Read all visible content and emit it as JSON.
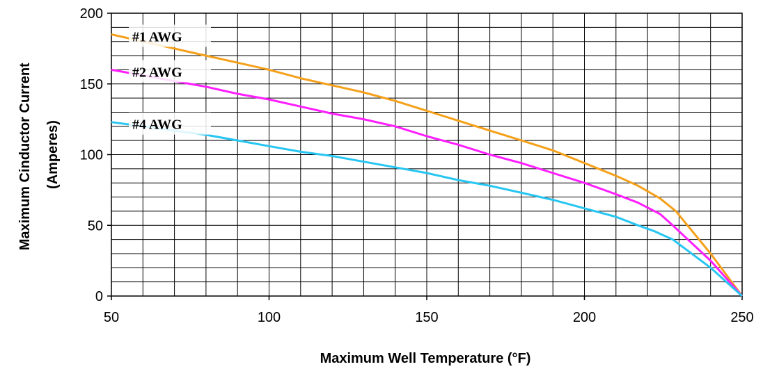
{
  "chart_data": {
    "type": "line",
    "title": "",
    "xlabel": "Maximum Well Temperature (°F)",
    "ylabel_lines": [
      "Maximum Cinductor Current",
      "(Amperes)"
    ],
    "xlim": [
      50,
      250
    ],
    "ylim": [
      0,
      200
    ],
    "x_ticks": [
      "50",
      "100",
      "150",
      "200",
      "250"
    ],
    "y_ticks": [
      "0",
      "50",
      "100",
      "150",
      "200"
    ],
    "x_minor_step": 10,
    "y_minor_step": 10,
    "grid": true,
    "series": [
      {
        "name": "#1 AWG",
        "color": "#F5A01A",
        "points": [
          [
            50,
            185
          ],
          [
            60,
            180
          ],
          [
            70,
            175
          ],
          [
            80,
            170
          ],
          [
            90,
            165
          ],
          [
            100,
            160
          ],
          [
            110,
            154
          ],
          [
            120,
            149
          ],
          [
            130,
            144
          ],
          [
            140,
            138
          ],
          [
            150,
            131
          ],
          [
            160,
            124
          ],
          [
            170,
            117
          ],
          [
            180,
            110
          ],
          [
            190,
            103
          ],
          [
            200,
            94
          ],
          [
            210,
            85
          ],
          [
            217,
            78
          ],
          [
            224,
            69
          ],
          [
            229,
            60
          ],
          [
            240,
            30
          ],
          [
            250,
            0
          ]
        ]
      },
      {
        "name": "#2 AWG",
        "color": "#FF1EFF",
        "points": [
          [
            50,
            160
          ],
          [
            60,
            156
          ],
          [
            70,
            152
          ],
          [
            80,
            148
          ],
          [
            90,
            143
          ],
          [
            100,
            139
          ],
          [
            110,
            134
          ],
          [
            120,
            129
          ],
          [
            130,
            125
          ],
          [
            140,
            120
          ],
          [
            150,
            113
          ],
          [
            160,
            107
          ],
          [
            170,
            100
          ],
          [
            180,
            94
          ],
          [
            190,
            87
          ],
          [
            200,
            80
          ],
          [
            210,
            72
          ],
          [
            217,
            66
          ],
          [
            224,
            58
          ],
          [
            228,
            50
          ],
          [
            240,
            25
          ],
          [
            250,
            0
          ]
        ]
      },
      {
        "name": "#4 AWG",
        "color": "#27C6F2",
        "points": [
          [
            50,
            123
          ],
          [
            60,
            120
          ],
          [
            70,
            117
          ],
          [
            80,
            114
          ],
          [
            90,
            110
          ],
          [
            100,
            106
          ],
          [
            110,
            102
          ],
          [
            120,
            99
          ],
          [
            130,
            95
          ],
          [
            140,
            91
          ],
          [
            150,
            87
          ],
          [
            160,
            82
          ],
          [
            170,
            78
          ],
          [
            180,
            73
          ],
          [
            190,
            68
          ],
          [
            200,
            62
          ],
          [
            210,
            56
          ],
          [
            217,
            50
          ],
          [
            222,
            46
          ],
          [
            228,
            40
          ],
          [
            240,
            20
          ],
          [
            250,
            0
          ]
        ]
      }
    ]
  }
}
